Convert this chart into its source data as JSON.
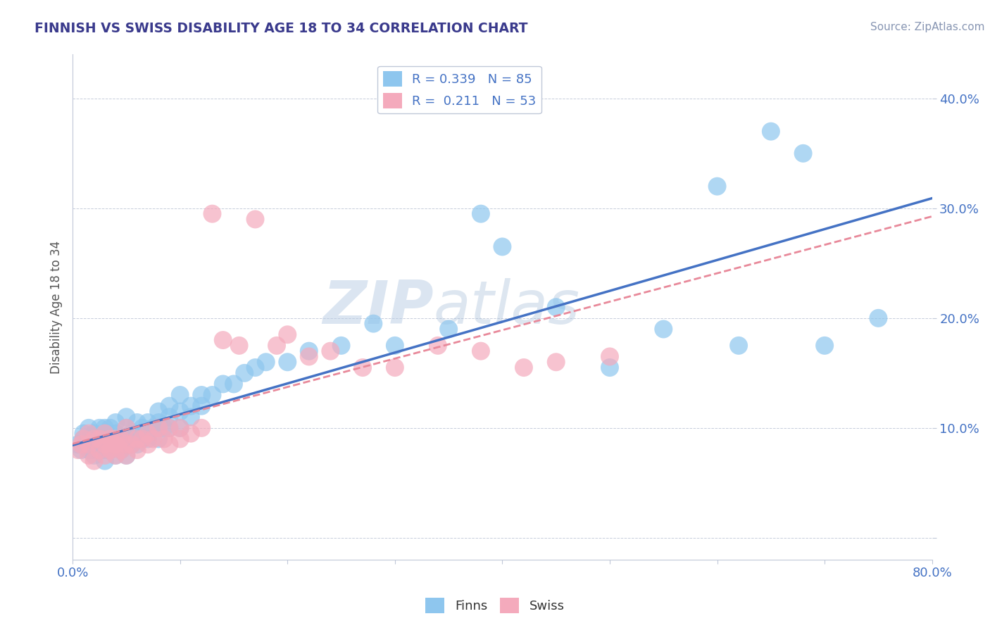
{
  "title": "FINNISH VS SWISS DISABILITY AGE 18 TO 34 CORRELATION CHART",
  "source_text": "Source: ZipAtlas.com",
  "ylabel": "Disability Age 18 to 34",
  "xlim": [
    0.0,
    0.8
  ],
  "ylim": [
    -0.02,
    0.44
  ],
  "xticks": [
    0.0,
    0.1,
    0.2,
    0.3,
    0.4,
    0.5,
    0.6,
    0.7,
    0.8
  ],
  "yticks": [
    0.0,
    0.1,
    0.2,
    0.3,
    0.4
  ],
  "R_finns": 0.339,
  "N_finns": 85,
  "R_swiss": 0.211,
  "N_swiss": 53,
  "color_finns": "#8EC6EE",
  "color_swiss": "#F4AABC",
  "color_line_finns": "#4472C4",
  "color_line_swiss": "#E8899A",
  "color_title": "#3A3A8C",
  "color_source": "#8896B3",
  "color_axis_labels": "#4472C4",
  "background_color": "#FFFFFF",
  "watermark_zip": "ZIP",
  "watermark_atlas": "atlas",
  "finns_x": [
    0.005,
    0.008,
    0.01,
    0.01,
    0.012,
    0.015,
    0.015,
    0.015,
    0.018,
    0.02,
    0.02,
    0.02,
    0.02,
    0.025,
    0.025,
    0.025,
    0.03,
    0.03,
    0.03,
    0.03,
    0.03,
    0.035,
    0.035,
    0.035,
    0.04,
    0.04,
    0.04,
    0.04,
    0.04,
    0.045,
    0.045,
    0.05,
    0.05,
    0.05,
    0.05,
    0.05,
    0.055,
    0.055,
    0.06,
    0.06,
    0.06,
    0.065,
    0.065,
    0.07,
    0.07,
    0.07,
    0.075,
    0.08,
    0.08,
    0.08,
    0.08,
    0.085,
    0.09,
    0.09,
    0.09,
    0.1,
    0.1,
    0.1,
    0.11,
    0.11,
    0.12,
    0.12,
    0.13,
    0.14,
    0.15,
    0.16,
    0.17,
    0.18,
    0.2,
    0.22,
    0.25,
    0.28,
    0.3,
    0.35,
    0.38,
    0.4,
    0.45,
    0.5,
    0.55,
    0.6,
    0.62,
    0.65,
    0.68,
    0.7,
    0.75
  ],
  "finns_y": [
    0.085,
    0.08,
    0.09,
    0.095,
    0.085,
    0.08,
    0.09,
    0.1,
    0.08,
    0.075,
    0.085,
    0.09,
    0.095,
    0.08,
    0.09,
    0.1,
    0.07,
    0.08,
    0.09,
    0.095,
    0.1,
    0.08,
    0.09,
    0.1,
    0.075,
    0.085,
    0.09,
    0.095,
    0.105,
    0.08,
    0.09,
    0.075,
    0.085,
    0.09,
    0.1,
    0.11,
    0.085,
    0.095,
    0.085,
    0.095,
    0.105,
    0.09,
    0.1,
    0.09,
    0.095,
    0.105,
    0.1,
    0.09,
    0.1,
    0.105,
    0.115,
    0.1,
    0.1,
    0.11,
    0.12,
    0.1,
    0.115,
    0.13,
    0.11,
    0.12,
    0.12,
    0.13,
    0.13,
    0.14,
    0.14,
    0.15,
    0.155,
    0.16,
    0.16,
    0.17,
    0.175,
    0.195,
    0.175,
    0.19,
    0.295,
    0.265,
    0.21,
    0.155,
    0.19,
    0.32,
    0.175,
    0.37,
    0.35,
    0.175,
    0.2
  ],
  "swiss_x": [
    0.005,
    0.008,
    0.01,
    0.015,
    0.015,
    0.015,
    0.02,
    0.02,
    0.025,
    0.025,
    0.03,
    0.03,
    0.03,
    0.035,
    0.035,
    0.04,
    0.04,
    0.04,
    0.045,
    0.045,
    0.05,
    0.05,
    0.05,
    0.055,
    0.06,
    0.06,
    0.065,
    0.07,
    0.07,
    0.075,
    0.08,
    0.085,
    0.09,
    0.09,
    0.1,
    0.1,
    0.11,
    0.12,
    0.13,
    0.14,
    0.155,
    0.17,
    0.19,
    0.2,
    0.22,
    0.24,
    0.27,
    0.3,
    0.34,
    0.38,
    0.42,
    0.45,
    0.5
  ],
  "swiss_y": [
    0.08,
    0.085,
    0.09,
    0.075,
    0.085,
    0.095,
    0.07,
    0.09,
    0.08,
    0.09,
    0.075,
    0.085,
    0.095,
    0.08,
    0.09,
    0.075,
    0.085,
    0.09,
    0.08,
    0.09,
    0.075,
    0.085,
    0.1,
    0.085,
    0.08,
    0.09,
    0.09,
    0.085,
    0.095,
    0.09,
    0.1,
    0.09,
    0.085,
    0.1,
    0.09,
    0.1,
    0.095,
    0.1,
    0.295,
    0.18,
    0.175,
    0.29,
    0.175,
    0.185,
    0.165,
    0.17,
    0.155,
    0.155,
    0.175,
    0.17,
    0.155,
    0.16,
    0.165
  ]
}
